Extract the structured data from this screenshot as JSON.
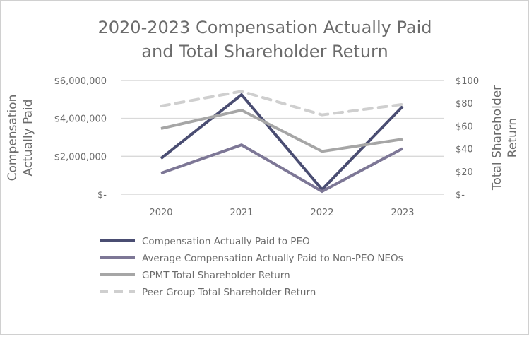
{
  "chart_data": {
    "type": "line",
    "title": [
      "2020-2023 Compensation Actually Paid",
      "and Total Shareholder Return"
    ],
    "ylabel": [
      "Compensation",
      "Actually Paid"
    ],
    "y2label": [
      "Total Shareholder",
      "Return"
    ],
    "categories": [
      "2020",
      "2021",
      "2022",
      "2023"
    ],
    "ylim": [
      0,
      6000000
    ],
    "y2lim": [
      0,
      100
    ],
    "yticks": [
      {
        "value": 0,
        "label": "$-"
      },
      {
        "value": 2000000,
        "label": "$2,000,000"
      },
      {
        "value": 4000000,
        "label": "$4,000,000"
      },
      {
        "value": 6000000,
        "label": "$6,000,000"
      }
    ],
    "y2ticks": [
      {
        "value": 0,
        "label": "$-"
      },
      {
        "value": 20,
        "label": "$20"
      },
      {
        "value": 40,
        "label": "$40"
      },
      {
        "value": 60,
        "label": "$60"
      },
      {
        "value": 80,
        "label": "$80"
      },
      {
        "value": 100,
        "label": "$100"
      }
    ],
    "grid": true,
    "legend_placement": "bottom",
    "series": [
      {
        "name": "Compensation Actually Paid to PEO",
        "axis": "left",
        "color": "#4a4d72",
        "dash": false,
        "values": [
          1890000,
          5250000,
          250000,
          4630000
        ]
      },
      {
        "name": "Average Compensation Actually Paid to Non-PEO NEOs",
        "axis": "left",
        "color": "#7d7796",
        "dash": false,
        "values": [
          1110000,
          2600000,
          150000,
          2410000
        ]
      },
      {
        "name": "GPMT Total Shareholder Return",
        "axis": "right",
        "color": "#a6a6a6",
        "dash": false,
        "values": [
          57.8,
          73.9,
          37.7,
          48.4
        ]
      },
      {
        "name": "Peer Group Total Shareholder Return",
        "axis": "right",
        "color": "#cfcfcf",
        "dash": true,
        "values": [
          77.6,
          90.5,
          69.8,
          79.0
        ]
      }
    ]
  }
}
